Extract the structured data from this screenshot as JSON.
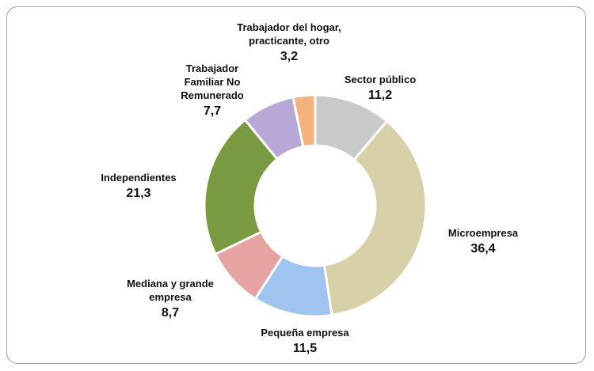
{
  "chart_data": {
    "type": "donut",
    "categories": [
      "Sector público",
      "Microempresa",
      "Pequeña empresa",
      "Mediana y grande empresa",
      "Independientes",
      "Trabajador Familiar No Remunerado",
      "Trabajador del hogar, practicante, otro"
    ],
    "values": [
      11.2,
      36.4,
      11.5,
      8.7,
      21.3,
      7.7,
      3.2
    ],
    "value_labels": [
      "11,2",
      "36,4",
      "11,5",
      "8,7",
      "21,3",
      "7,7",
      "3,2"
    ],
    "colors": [
      "#c9c9c9",
      "#d7d0a8",
      "#9fc4f0",
      "#e6a3a1",
      "#7a9a42",
      "#b8a8d8",
      "#f5b27c"
    ]
  }
}
